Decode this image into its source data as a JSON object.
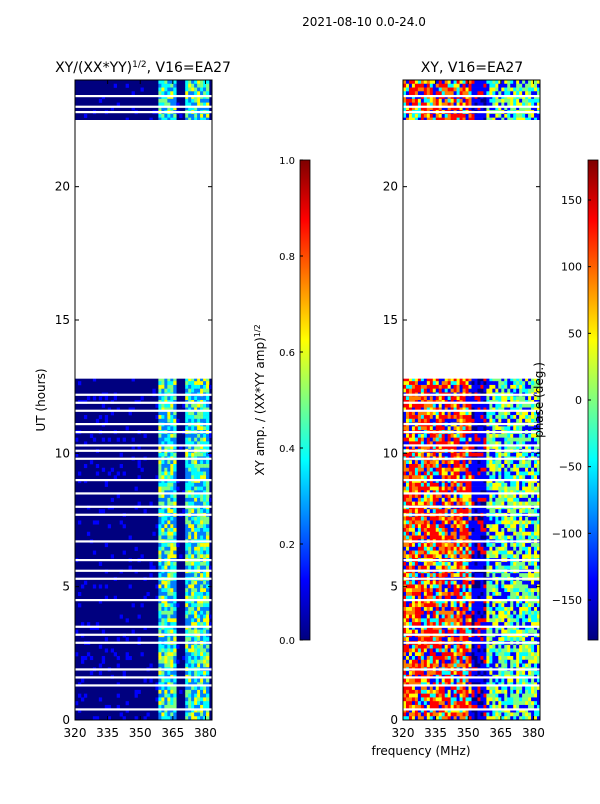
{
  "suptitle": "2021-08-10 0.0-24.0",
  "shared_xlabel": "frequency (MHz)",
  "colors": {
    "jet": [
      "#00007f",
      "#0000ff",
      "#007fff",
      "#00ffff",
      "#7fff7f",
      "#ffff00",
      "#ff7f00",
      "#ff0000",
      "#7f0000"
    ],
    "background": "#00007f",
    "gap": "#ffffff"
  },
  "chart_data": [
    {
      "type": "heatmap",
      "title_main": "XY/(XX*YY)",
      "title_sup": "1/2",
      "title_tail": ", V16=EA27",
      "xlabel": "",
      "ylabel": "UT (hours)",
      "x_ticks": [
        320,
        335,
        350,
        365,
        380
      ],
      "y_ticks": [
        0,
        5,
        10,
        15,
        20
      ],
      "xlim": [
        320,
        383
      ],
      "ylim": [
        0,
        24
      ],
      "data_gap": [
        12.8,
        22.5
      ],
      "colorbar": {
        "label_main": "XY amp. / (XX*YY amp)",
        "label_sup": "1/2",
        "range": [
          0.0,
          1.0
        ],
        "ticks": [
          "0.0",
          "0.2",
          "0.4",
          "0.6",
          "0.8",
          "1.0"
        ],
        "tick_values": [
          0.0,
          0.2,
          0.4,
          0.6,
          0.8,
          1.0
        ]
      }
    },
    {
      "type": "heatmap",
      "title_main": "XY, V16=EA27",
      "title_sup": "",
      "title_tail": "",
      "xlabel": "frequency (MHz)",
      "ylabel": "",
      "x_ticks": [
        320,
        335,
        350,
        365,
        380
      ],
      "y_ticks": [
        0,
        5,
        10,
        15,
        20
      ],
      "xlim": [
        320,
        383
      ],
      "ylim": [
        0,
        24
      ],
      "data_gap": [
        12.8,
        22.5
      ],
      "colorbar": {
        "label_main": "phase (deg.)",
        "label_sup": "",
        "range": [
          -180,
          180
        ],
        "ticks": [
          "150",
          "100",
          "50",
          "0",
          "−50",
          "−100",
          "−150"
        ],
        "tick_values": [
          150,
          100,
          50,
          0,
          -50,
          -100,
          -150
        ]
      }
    }
  ]
}
